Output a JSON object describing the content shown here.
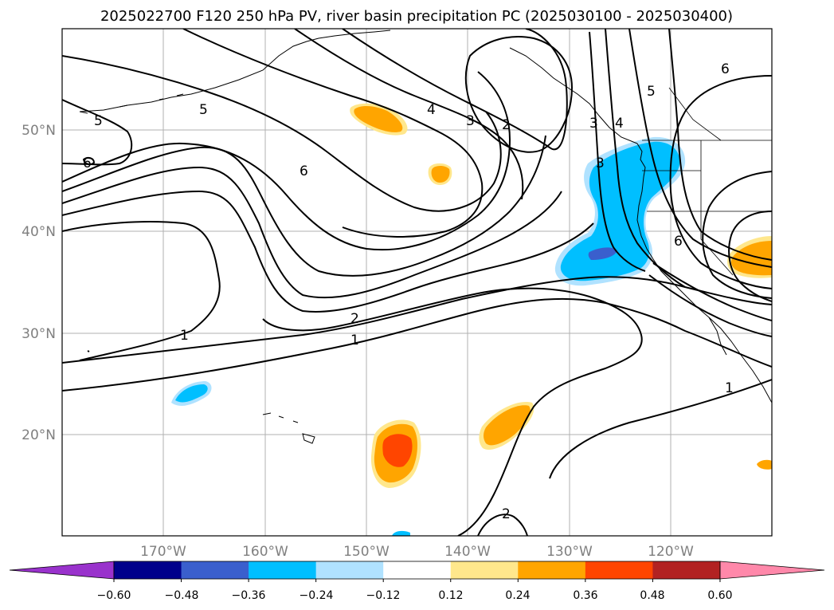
{
  "title": "2025022700 F120 250 hPa PV, river basin precipitation PC (2025030100 - 2025030400)",
  "lon_ticks": [
    "170°W",
    "160°W",
    "150°W",
    "140°W",
    "130°W",
    "120°W"
  ],
  "lat_ticks": [
    "50°N",
    "40°N",
    "30°N",
    "20°N"
  ],
  "colorbar": {
    "ticks": [
      "−0.60",
      "−0.48",
      "−0.36",
      "−0.24",
      "−0.12",
      "0.12",
      "0.24",
      "0.36",
      "0.48",
      "0.60"
    ],
    "colors": [
      "#9932cc",
      "#00008b",
      "#3a5fcd",
      "#00bfff",
      "#b0e2ff",
      "#ffffff",
      "#ffe78c",
      "#ffa500",
      "#ff4500",
      "#b22222",
      "#ff88aa"
    ],
    "extend": "both"
  },
  "contour_labels": [
    "5",
    "5",
    "6",
    "6",
    "4",
    "3",
    "2",
    "2",
    "1",
    "1",
    "1",
    "2",
    "3",
    "4",
    "5",
    "6",
    "6",
    "3"
  ],
  "colors": {
    "gridline": "#b0b0b0",
    "contour": "#000000",
    "coast": "#000000"
  }
}
